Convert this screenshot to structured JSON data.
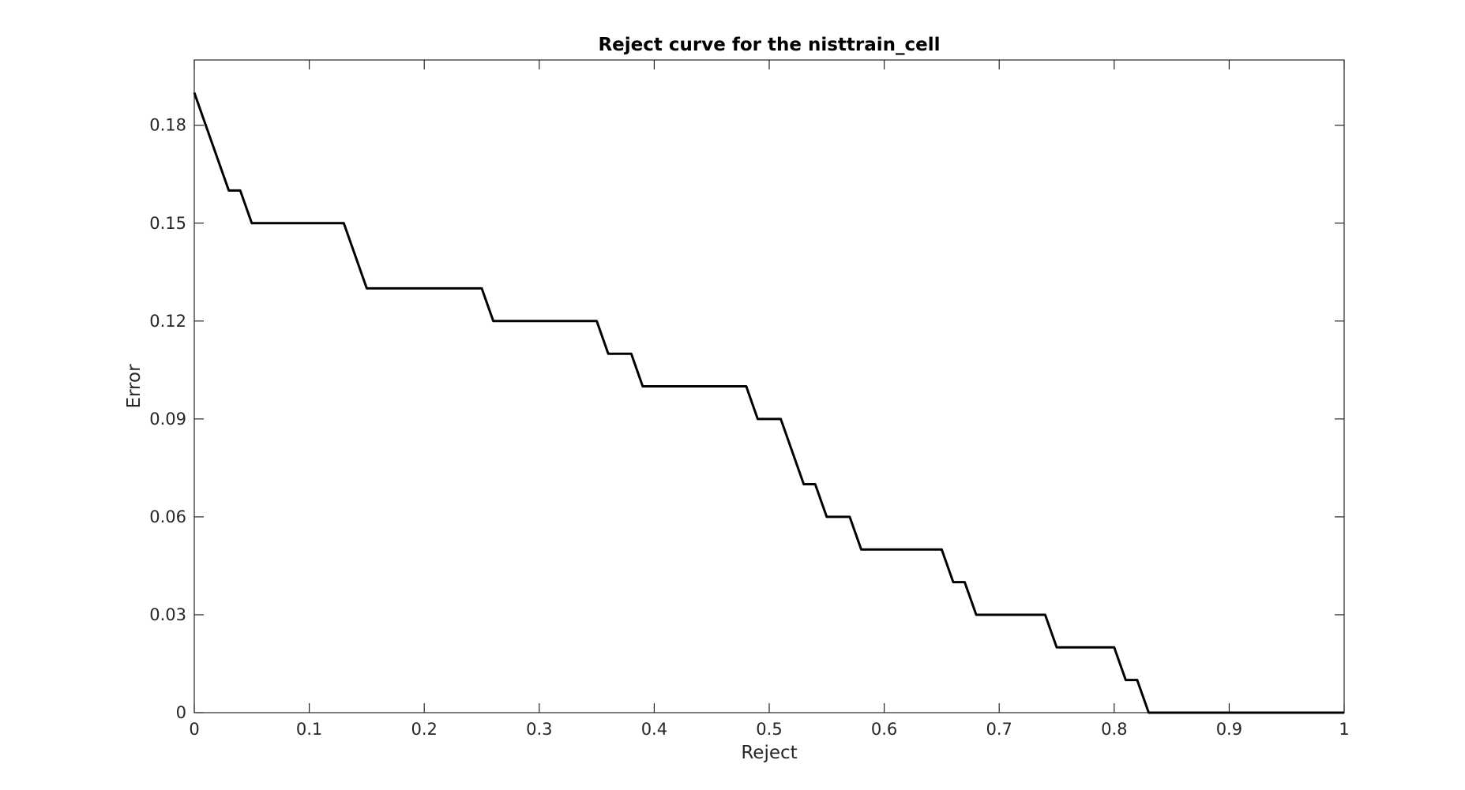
{
  "chart_data": {
    "type": "line",
    "title": "Reject curve for the nisttrain_cell",
    "xlabel": "Reject",
    "ylabel": "Error",
    "xlim": [
      0,
      1
    ],
    "ylim": [
      0,
      0.2
    ],
    "x_ticks": [
      0,
      0.1,
      0.2,
      0.3,
      0.4,
      0.5,
      0.6,
      0.7,
      0.8,
      0.9,
      1
    ],
    "x_tick_labels": [
      "0",
      "0.1",
      "0.2",
      "0.3",
      "0.4",
      "0.5",
      "0.6",
      "0.7",
      "0.8",
      "0.9",
      "1"
    ],
    "y_ticks": [
      0,
      0.03,
      0.06,
      0.09,
      0.12,
      0.15,
      0.18
    ],
    "y_tick_labels": [
      "0",
      "0.03",
      "0.06",
      "0.09",
      "0.12",
      "0.15",
      "0.18"
    ],
    "grid": false,
    "line_color": "#000000",
    "series": [
      {
        "x": [
          0,
          0.03,
          0.04,
          0.05,
          0.13,
          0.15,
          0.25,
          0.26,
          0.35,
          0.36,
          0.38,
          0.39,
          0.48,
          0.49,
          0.51,
          0.53,
          0.54,
          0.55,
          0.57,
          0.58,
          0.65,
          0.66,
          0.67,
          0.68,
          0.74,
          0.75,
          0.8,
          0.81,
          0.82,
          0.83,
          1.0
        ],
        "y": [
          0.19,
          0.16,
          0.16,
          0.15,
          0.15,
          0.13,
          0.13,
          0.12,
          0.12,
          0.11,
          0.11,
          0.1,
          0.1,
          0.09,
          0.09,
          0.07,
          0.07,
          0.06,
          0.06,
          0.05,
          0.05,
          0.04,
          0.04,
          0.03,
          0.03,
          0.02,
          0.02,
          0.01,
          0.01,
          0,
          0
        ]
      }
    ]
  }
}
